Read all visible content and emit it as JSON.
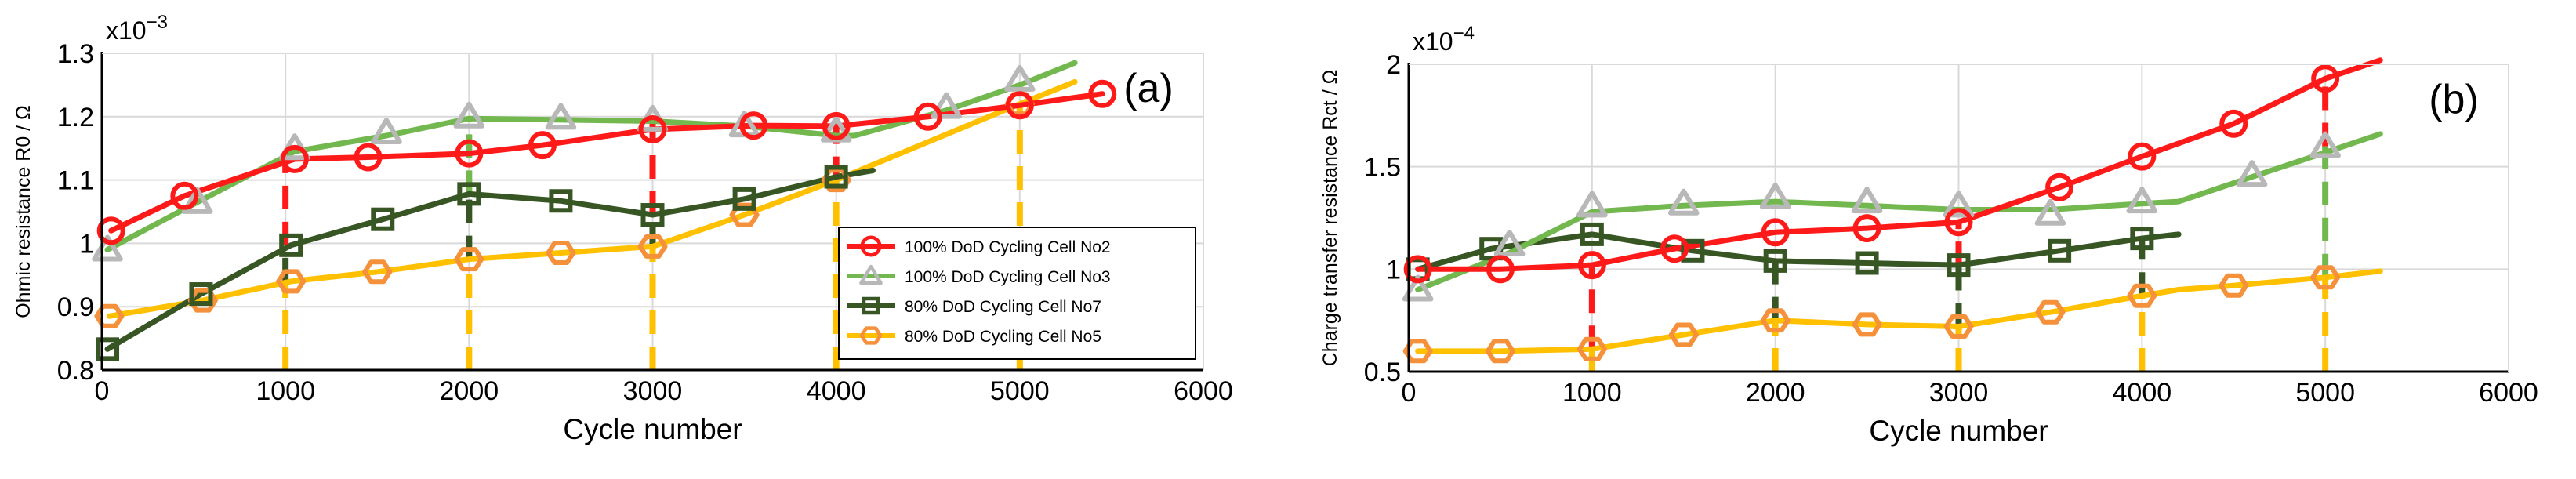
{
  "figure": {
    "charts": [
      {
        "xlabel": "Cycle number",
        "ylabel": "Ohmic resistance R0 / Ω",
        "exponent": "x10",
        "exponent_power": "−3",
        "panel_label": "(a)",
        "xticks": [
          "0",
          "1000",
          "2000",
          "3000",
          "4000",
          "5000",
          "6000"
        ],
        "yticks": [
          "0.8",
          "0.9",
          "1",
          "1.1",
          "1.2",
          "1.3"
        ]
      },
      {
        "xlabel": "Cycle number",
        "ylabel": "Charge transfer resistance Rct / Ω",
        "exponent": "x10",
        "exponent_power": "−4",
        "panel_label": "(b)",
        "xticks": [
          "0",
          "1000",
          "2000",
          "3000",
          "4000",
          "5000",
          "6000"
        ],
        "yticks": [
          "0.5",
          "1",
          "1.5",
          "2"
        ]
      }
    ],
    "legend": [
      "100% DoD Cycling Cell No2",
      "100% DoD Cycling Cell No3",
      "80% DoD Cycling Cell No7",
      "80% DoD Cycling Cell No5"
    ]
  },
  "chart_data": [
    {
      "type": "line",
      "title": "(a)",
      "xlabel": "Cycle number",
      "ylabel": "Ohmic resistance R0 / Ω",
      "y_scale": "x10^-3",
      "xlim": [
        0,
        6000
      ],
      "ylim": [
        0.8,
        1.3
      ],
      "grid": true,
      "legend_location": "lower-right",
      "colors": {
        "cell2": "#ff1a1a",
        "cell3": "#72b84f",
        "cell7": "#375623",
        "cell5": "#ffc000",
        "cell5_marker": "#f4913a",
        "cell3_marker": "#b8b8b8",
        "dash_a": "#ff1a1a",
        "dash_b": "#375623"
      },
      "series": [
        {
          "name": "100% DoD Cycling Cell No2",
          "marker": "circle",
          "x": [
            50,
            450,
            1050,
            1450,
            2000,
            2400,
            3000,
            3550,
            4000,
            4500,
            5000,
            5450
          ],
          "y": [
            1.02,
            1.075,
            1.133,
            1.136,
            1.142,
            1.155,
            1.18,
            1.186,
            1.185,
            1.2,
            1.218,
            1.236
          ]
        },
        {
          "name": "100% DoD Cycling Cell No3",
          "marker": "triangle",
          "x": [
            30,
            520,
            1050,
            1550,
            2000,
            2500,
            3000,
            3500,
            4000,
            4600,
            5000
          ],
          "y": [
            0.99,
            1.065,
            1.15,
            1.175,
            1.2,
            1.198,
            1.195,
            1.186,
            1.178,
            1.215,
            1.258
          ],
          "line_x": [
            30,
            520,
            1050,
            1550,
            2000,
            3000,
            3500,
            4000,
            4100,
            4600,
            5000,
            5300
          ],
          "line_y": [
            0.99,
            1.065,
            1.145,
            1.17,
            1.197,
            1.193,
            1.185,
            1.17,
            1.17,
            1.21,
            1.25,
            1.285
          ]
        },
        {
          "name": "80% DoD Cycling Cell No7",
          "marker": "square",
          "x": [
            30,
            540,
            1030,
            1530,
            2000,
            2500,
            3000,
            3500,
            4000
          ],
          "y": [
            0.833,
            0.92,
            0.997,
            1.038,
            1.078,
            1.067,
            1.045,
            1.07,
            1.105
          ],
          "line_x": [
            30,
            540,
            1030,
            1530,
            2000,
            2500,
            3000,
            3500,
            4000,
            4200
          ],
          "line_y": [
            0.833,
            0.92,
            0.997,
            1.038,
            1.078,
            1.067,
            1.045,
            1.07,
            1.105,
            1.115
          ]
        },
        {
          "name": "80% DoD Cycling Cell No5",
          "marker": "hexagon",
          "x": [
            40,
            550,
            1030,
            1500,
            2000,
            2500,
            3000,
            3500,
            4000,
            5000
          ],
          "y": [
            0.885,
            0.91,
            0.94,
            0.955,
            0.975,
            0.985,
            0.995,
            1.045,
            1.1,
            1.22
          ],
          "line_x": [
            40,
            550,
            1030,
            1500,
            2000,
            2500,
            3000,
            3500,
            4000,
            5000,
            5300
          ],
          "line_y": [
            0.885,
            0.91,
            0.94,
            0.955,
            0.975,
            0.985,
            0.995,
            1.045,
            1.1,
            1.22,
            1.255
          ]
        }
      ],
      "dashed_markers": [
        {
          "x": 1000,
          "from": 0.8,
          "to": 1.133,
          "colors": [
            "cell5",
            "cell7",
            "cell2"
          ],
          "cuts": [
            0.94,
            0.997
          ]
        },
        {
          "x": 2000,
          "from": 0.8,
          "to": 1.2,
          "colors": [
            "cell5",
            "cell7",
            "cell3"
          ],
          "cuts": [
            0.975,
            1.078
          ]
        },
        {
          "x": 3000,
          "from": 0.8,
          "to": 1.195,
          "colors": [
            "cell5",
            "cell7",
            "cell2"
          ],
          "cuts": [
            0.995,
            1.045
          ]
        },
        {
          "x": 4000,
          "from": 0.8,
          "to": 1.185,
          "colors": [
            "cell5",
            "cell2"
          ],
          "cuts": [
            1.1
          ]
        },
        {
          "x": 5000,
          "from": 0.8,
          "to": 1.22,
          "colors": [
            "cell5"
          ],
          "cuts": []
        }
      ]
    },
    {
      "type": "line",
      "title": "(b)",
      "xlabel": "Cycle number",
      "ylabel": "Charge transfer resistance Rct / Ω",
      "y_scale": "x10^-4",
      "xlim": [
        0,
        6000
      ],
      "ylim": [
        0.5,
        2.0
      ],
      "grid": true,
      "legend_location": "none",
      "colors": {
        "cell2": "#ff1a1a",
        "cell3": "#72b84f",
        "cell7": "#375623",
        "cell5": "#ffc000",
        "cell5_marker": "#f4913a",
        "cell3_marker": "#b8b8b8"
      },
      "series": [
        {
          "name": "100% DoD Cycling Cell No2",
          "marker": "circle",
          "x": [
            50,
            500,
            1000,
            1450,
            2000,
            2500,
            3000,
            3550,
            4000,
            4500,
            5000
          ],
          "y": [
            1.0,
            1.0,
            1.02,
            1.1,
            1.18,
            1.2,
            1.23,
            1.4,
            1.55,
            1.71,
            1.93
          ],
          "line_x": [
            50,
            500,
            1000,
            1450,
            2000,
            2500,
            3000,
            3550,
            4000,
            4500,
            5000,
            5300
          ],
          "line_y": [
            1.0,
            1.0,
            1.02,
            1.1,
            1.18,
            1.2,
            1.23,
            1.4,
            1.55,
            1.71,
            1.93,
            2.02
          ]
        },
        {
          "name": "100% DoD Cycling Cell No3",
          "marker": "triangle",
          "x": [
            50,
            550,
            1000,
            1500,
            2000,
            2500,
            3000,
            3500,
            4000,
            4600,
            5000
          ],
          "y": [
            0.9,
            1.12,
            1.31,
            1.32,
            1.35,
            1.33,
            1.31,
            1.27,
            1.33,
            1.46,
            1.6
          ],
          "line_x": [
            50,
            550,
            1000,
            1500,
            2000,
            2500,
            3000,
            3500,
            4000,
            4200,
            4600,
            5000,
            5300
          ],
          "line_y": [
            0.9,
            1.08,
            1.28,
            1.31,
            1.33,
            1.31,
            1.29,
            1.29,
            1.32,
            1.33,
            1.45,
            1.57,
            1.66
          ]
        },
        {
          "name": "80% DoD Cycling Cell No7",
          "marker": "square",
          "x": [
            50,
            450,
            1000,
            1550,
            2000,
            2500,
            3000,
            3550,
            4000
          ],
          "y": [
            1.0,
            1.1,
            1.17,
            1.09,
            1.04,
            1.03,
            1.02,
            1.09,
            1.15
          ],
          "line_x": [
            50,
            450,
            1000,
            1550,
            2000,
            2500,
            3000,
            3550,
            4000,
            4200
          ],
          "line_y": [
            1.0,
            1.1,
            1.17,
            1.09,
            1.04,
            1.03,
            1.02,
            1.09,
            1.15,
            1.17
          ]
        },
        {
          "name": "80% DoD Cycling Cell No5",
          "marker": "hexagon",
          "x": [
            50,
            500,
            1000,
            1500,
            2000,
            2500,
            3000,
            3500,
            4000,
            4500,
            5000
          ],
          "y": [
            0.6,
            0.6,
            0.61,
            0.68,
            0.75,
            0.73,
            0.72,
            0.79,
            0.87,
            0.92,
            0.96
          ],
          "line_x": [
            50,
            500,
            1000,
            1500,
            2000,
            2500,
            3000,
            3500,
            4000,
            4200,
            4500,
            5000,
            5300
          ],
          "line_y": [
            0.6,
            0.6,
            0.61,
            0.68,
            0.75,
            0.73,
            0.72,
            0.79,
            0.87,
            0.9,
            0.92,
            0.96,
            0.99
          ]
        }
      ],
      "dashed_markers": [
        {
          "x": 1000,
          "from": 0.5,
          "to": 1.02,
          "colors": [
            "cell5",
            "cell2"
          ],
          "cuts": [
            0.61
          ]
        },
        {
          "x": 2000,
          "from": 0.5,
          "to": 1.04,
          "colors": [
            "cell5",
            "cell7"
          ],
          "cuts": [
            0.75
          ]
        },
        {
          "x": 3000,
          "from": 0.5,
          "to": 1.23,
          "colors": [
            "cell5",
            "cell7",
            "cell2"
          ],
          "cuts": [
            0.72,
            1.02
          ]
        },
        {
          "x": 4000,
          "from": 0.5,
          "to": 1.15,
          "colors": [
            "cell5",
            "cell7"
          ],
          "cuts": [
            0.87
          ]
        },
        {
          "x": 5000,
          "from": 0.5,
          "to": 1.93,
          "colors": [
            "cell5",
            "cell3",
            "cell2"
          ],
          "cuts": [
            0.96,
            1.6
          ]
        }
      ]
    }
  ]
}
